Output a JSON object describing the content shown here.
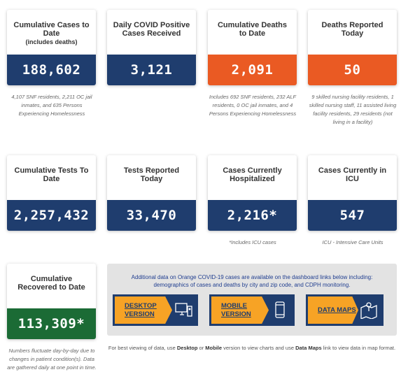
{
  "cards": [
    {
      "title": "Cumulative Cases to Date",
      "subtitle": "(includes deaths)",
      "value": "188,602",
      "color": "navy",
      "note": "4,107 SNF residents, 2,211 OC jail inmates, and 635 Persons Experiencing Homelessness"
    },
    {
      "title": "Daily COVID Positive Cases Received",
      "value": "3,121",
      "color": "navy"
    },
    {
      "title": "Cumulative Deaths to Date",
      "value": "2,091",
      "color": "orange",
      "note": "Includes 692 SNF residents, 232 ALF residents, 0 OC jail inmates, and 4 Persons Experiencing Homelessness"
    },
    {
      "title": "Deaths Reported Today",
      "value": "50",
      "color": "orange",
      "note": "9 skilled nursing facility residents, 1 skilled nursing staff, 11 assisted living facility residents, 29 residents (not living in a facility)"
    },
    {
      "title": "Cumulative Tests To Date",
      "value": "2,257,432",
      "color": "navy"
    },
    {
      "title": "Tests Reported Today",
      "value": "33,470",
      "color": "navy"
    },
    {
      "title": "Cases Currently Hospitalized",
      "value": "2,216*",
      "color": "navy",
      "note": "*Includes ICU cases"
    },
    {
      "title": "Cases Currently in ICU",
      "value": "547",
      "color": "navy",
      "note": "ICU - Intensive Care Units"
    },
    {
      "title": "Cumulative Recovered to Date",
      "value": "113,309*",
      "color": "green",
      "note": "Numbers fluctuate day-by-day due to changes in patient condition(s). Data are gathered daily at one point in time."
    }
  ],
  "panel": {
    "text": "Additional data on Orange COVID-19 cases are available on the dashboard links below including: demographics of cases and deaths by city and zip code, and CDPH monitoring.",
    "buttons": [
      "DESKTOP VERSION",
      "MOBILE VERSION",
      "DATA MAPS"
    ]
  },
  "footer": [
    "For best viewing of data, use ",
    "Desktop",
    " or ",
    "Mobile",
    " version to view charts and use ",
    "Data Maps",
    " link to view data in map format."
  ]
}
